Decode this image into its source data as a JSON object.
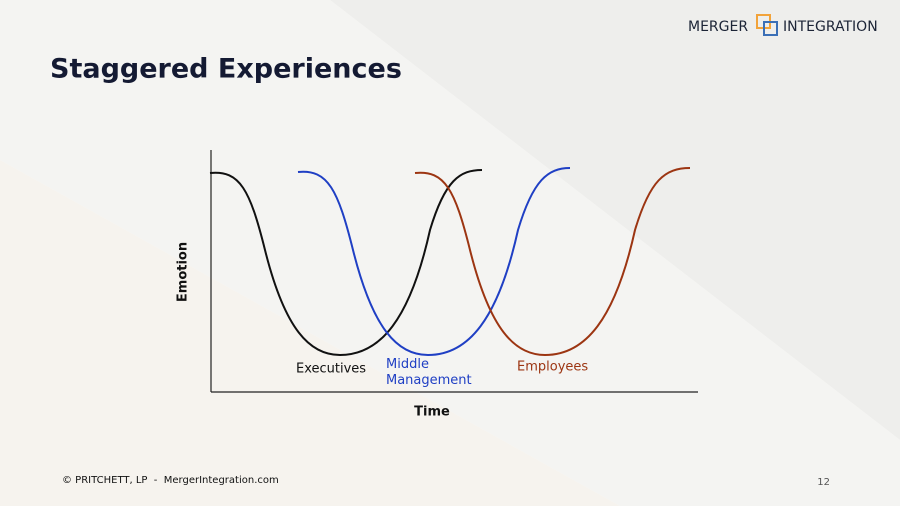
{
  "logo": {
    "left": "MERGER",
    "right": "INTEGRATION"
  },
  "title": "Staggered Experiences",
  "diagram": {
    "y_label": "Emotion",
    "x_label": "Time",
    "curves": [
      {
        "label": [
          "Executives"
        ]
      },
      {
        "label": [
          "Middle",
          "Management"
        ]
      },
      {
        "label": [
          "Employees"
        ]
      }
    ]
  },
  "footer": {
    "copyright": "© PRITCHETT, LP  -  MergerIntegration.com",
    "page": "12"
  }
}
